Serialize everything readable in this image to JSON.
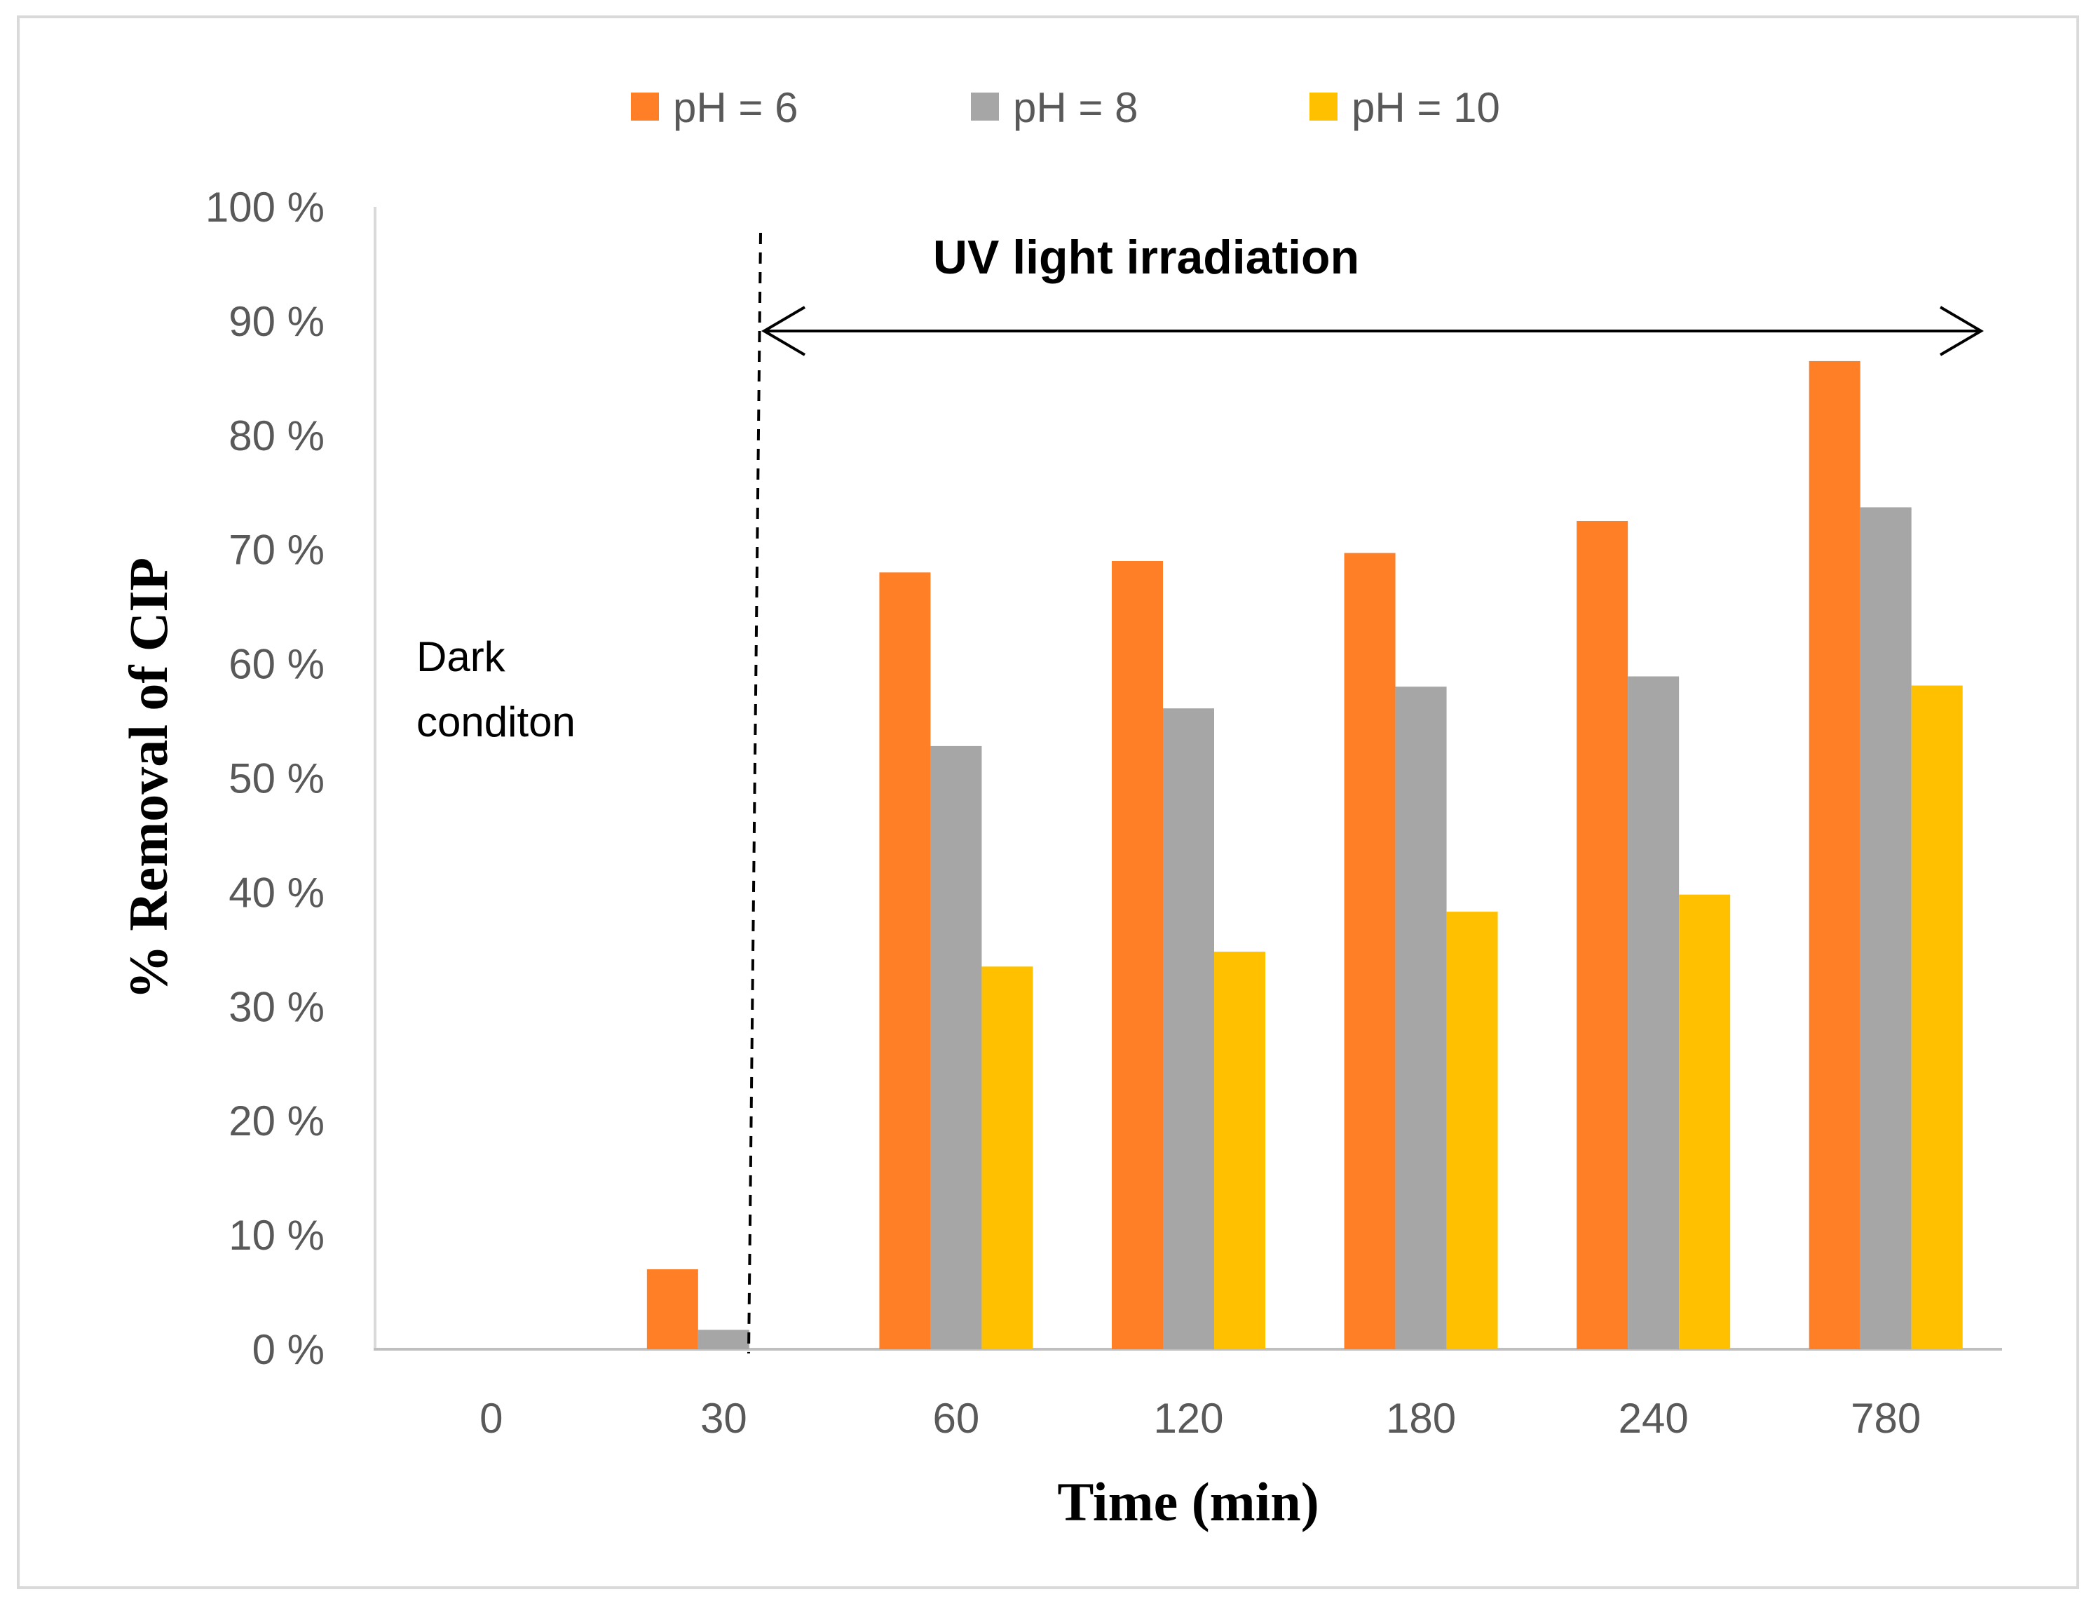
{
  "chart_data": {
    "type": "bar",
    "title": "",
    "xlabel": "Time (min)",
    "ylabel": "% Removal of CIP",
    "categories": [
      "0",
      "30",
      "60",
      "120",
      "180",
      "240",
      "780"
    ],
    "series": [
      {
        "name": "pH = 6",
        "color": "#FF7F27",
        "values": [
          0,
          7.0,
          68.0,
          69.0,
          69.7,
          72.5,
          86.5
        ]
      },
      {
        "name": "pH = 8",
        "color": "#A6A6A6",
        "values": [
          0,
          1.7,
          52.8,
          56.1,
          58.0,
          58.9,
          73.7
        ]
      },
      {
        "name": "pH = 10",
        "color": "#FFC000",
        "values": [
          0,
          0,
          33.5,
          34.8,
          38.3,
          39.8,
          58.1
        ]
      }
    ],
    "ylim": [
      0,
      100
    ],
    "yticks": [
      0,
      10,
      20,
      30,
      40,
      50,
      60,
      70,
      80,
      90,
      100
    ],
    "ytick_labels": [
      "0 %",
      "10 %",
      "20 %",
      "30 %",
      "40 %",
      "50 %",
      "60 %",
      "70 %",
      "80 %",
      "90 %",
      "100 %"
    ],
    "grid": false,
    "legend_position": "top",
    "annotations": {
      "dark_line1": "Dark",
      "dark_line2": "conditon",
      "uv_label": "UV light irradiation"
    }
  }
}
